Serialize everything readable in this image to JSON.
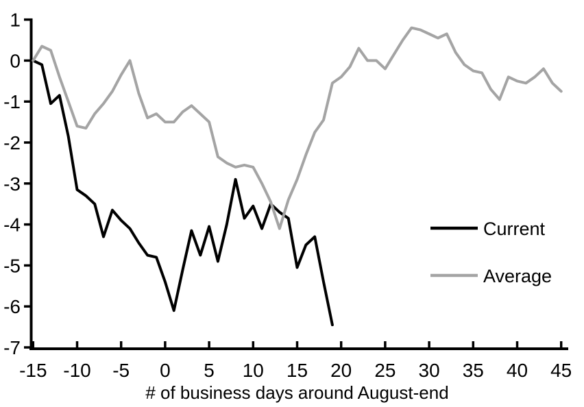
{
  "chart_data": {
    "type": "line",
    "title": "",
    "xlabel": "# of business days around August-end",
    "ylabel": "",
    "xlim": [
      -15,
      45
    ],
    "ylim": [
      -7,
      1
    ],
    "x_ticks": [
      -15,
      -10,
      -5,
      0,
      5,
      10,
      15,
      20,
      25,
      30,
      35,
      40,
      45
    ],
    "y_ticks": [
      1,
      0,
      -1,
      -2,
      -3,
      -4,
      -5,
      -6,
      -7
    ],
    "grid": false,
    "legend_position": "middle-right",
    "axis_color": "#000000",
    "series": [
      {
        "name": "Current",
        "color": "#000000",
        "points": [
          [
            -15,
            0
          ],
          [
            -14,
            -0.1
          ],
          [
            -13,
            -1.05
          ],
          [
            -12,
            -0.85
          ],
          [
            -11,
            -1.85
          ],
          [
            -10,
            -3.15
          ],
          [
            -9,
            -3.3
          ],
          [
            -8,
            -3.5
          ],
          [
            -7,
            -4.3
          ],
          [
            -6,
            -3.65
          ],
          [
            -5,
            -3.9
          ],
          [
            -4,
            -4.1
          ],
          [
            -3,
            -4.45
          ],
          [
            -2,
            -4.75
          ],
          [
            -1,
            -4.8
          ],
          [
            0,
            -5.4
          ],
          [
            1,
            -6.1
          ],
          [
            2,
            -5.1
          ],
          [
            3,
            -4.15
          ],
          [
            4,
            -4.75
          ],
          [
            5,
            -4.05
          ],
          [
            6,
            -4.9
          ],
          [
            7,
            -4.0
          ],
          [
            8,
            -2.9
          ],
          [
            9,
            -3.85
          ],
          [
            10,
            -3.55
          ],
          [
            11,
            -4.1
          ],
          [
            12,
            -3.5
          ],
          [
            13,
            -3.7
          ],
          [
            14,
            -3.85
          ],
          [
            15,
            -5.05
          ],
          [
            16,
            -4.5
          ],
          [
            17,
            -4.3
          ],
          [
            18,
            -5.4
          ],
          [
            19,
            -6.45
          ]
        ]
      },
      {
        "name": "Average",
        "color": "#a4a4a4",
        "points": [
          [
            -15,
            0
          ],
          [
            -14,
            0.35
          ],
          [
            -13,
            0.25
          ],
          [
            -12,
            -0.4
          ],
          [
            -11,
            -1.0
          ],
          [
            -10,
            -1.6
          ],
          [
            -9,
            -1.65
          ],
          [
            -8,
            -1.3
          ],
          [
            -7,
            -1.05
          ],
          [
            -6,
            -0.75
          ],
          [
            -5,
            -0.35
          ],
          [
            -4,
            0.0
          ],
          [
            -3,
            -0.8
          ],
          [
            -2,
            -1.4
          ],
          [
            -1,
            -1.3
          ],
          [
            0,
            -1.5
          ],
          [
            1,
            -1.5
          ],
          [
            2,
            -1.25
          ],
          [
            3,
            -1.1
          ],
          [
            4,
            -1.3
          ],
          [
            5,
            -1.5
          ],
          [
            6,
            -2.35
          ],
          [
            7,
            -2.5
          ],
          [
            8,
            -2.6
          ],
          [
            9,
            -2.55
          ],
          [
            10,
            -2.6
          ],
          [
            11,
            -3.0
          ],
          [
            12,
            -3.45
          ],
          [
            13,
            -4.1
          ],
          [
            14,
            -3.4
          ],
          [
            15,
            -2.9
          ],
          [
            16,
            -2.3
          ],
          [
            17,
            -1.75
          ],
          [
            18,
            -1.45
          ],
          [
            19,
            -0.55
          ],
          [
            20,
            -0.4
          ],
          [
            21,
            -0.15
          ],
          [
            22,
            0.3
          ],
          [
            23,
            0.0
          ],
          [
            24,
            0.0
          ],
          [
            25,
            -0.2
          ],
          [
            26,
            0.15
          ],
          [
            27,
            0.5
          ],
          [
            28,
            0.8
          ],
          [
            29,
            0.75
          ],
          [
            30,
            0.65
          ],
          [
            31,
            0.55
          ],
          [
            32,
            0.65
          ],
          [
            33,
            0.2
          ],
          [
            34,
            -0.1
          ],
          [
            35,
            -0.25
          ],
          [
            36,
            -0.3
          ],
          [
            37,
            -0.7
          ],
          [
            38,
            -0.95
          ],
          [
            39,
            -0.4
          ],
          [
            40,
            -0.5
          ],
          [
            41,
            -0.55
          ],
          [
            42,
            -0.4
          ],
          [
            43,
            -0.2
          ],
          [
            44,
            -0.55
          ],
          [
            45,
            -0.75
          ]
        ]
      }
    ],
    "legend": {
      "items": [
        {
          "label": "Current",
          "color": "#000000"
        },
        {
          "label": "Average",
          "color": "#a4a4a4"
        }
      ]
    }
  }
}
